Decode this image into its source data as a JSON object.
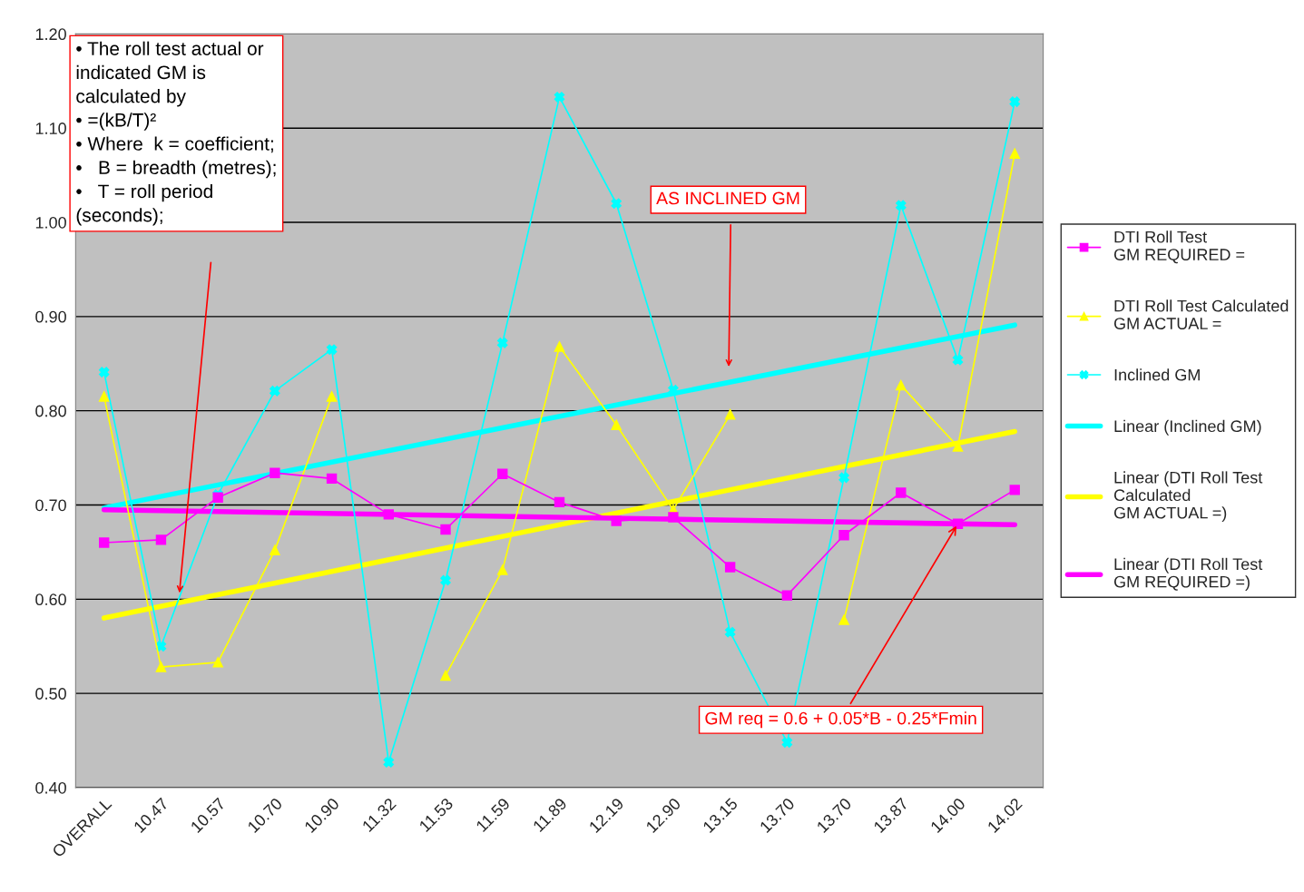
{
  "chart_data": {
    "type": "line",
    "categories": [
      "OVERALL",
      "10.47",
      "10.57",
      "10.70",
      "10.90",
      "11.32",
      "11.53",
      "11.59",
      "11.89",
      "12.19",
      "12.90",
      "13.15",
      "13.70",
      "13.70",
      "13.87",
      "14.00",
      "14.02"
    ],
    "series": [
      {
        "name": "DTI Roll Test\nGM REQUIRED =",
        "color": "#ff00ff",
        "marker": "square",
        "values": [
          0.66,
          0.663,
          0.708,
          0.734,
          0.728,
          0.69,
          0.674,
          0.733,
          0.703,
          0.683,
          0.687,
          0.634,
          0.604,
          0.668,
          0.713,
          0.68,
          0.716
        ]
      },
      {
        "name": "DTI Roll Test Calculated\nGM ACTUAL =",
        "color": "#ffff00",
        "marker": "triangle",
        "values": [
          0.815,
          0.528,
          0.533,
          0.652,
          0.815,
          null,
          0.519,
          0.631,
          0.868,
          0.785,
          0.695,
          0.796,
          null,
          0.578,
          0.827,
          0.762,
          1.073
        ]
      },
      {
        "name": "Inclined GM",
        "color": "#00ffff",
        "marker": "cross",
        "values": [
          0.841,
          0.55,
          0.711,
          0.821,
          0.865,
          0.427,
          0.62,
          0.872,
          1.133,
          1.02,
          0.822,
          0.565,
          0.448,
          0.729,
          1.018,
          0.854,
          1.128
        ]
      },
      {
        "name": "Linear (Inclined GM)",
        "color": "#00ffff",
        "marker": "none",
        "x": [
          "OVERALL",
          "14.02"
        ],
        "values": [
          0.697,
          0.891
        ]
      },
      {
        "name": "Linear (DTI Roll Test\nCalculated\nGM ACTUAL =)",
        "color": "#ffff00",
        "marker": "none",
        "x": [
          "OVERALL",
          "14.02"
        ],
        "values": [
          0.58,
          0.778
        ]
      },
      {
        "name": "Linear (DTI Roll Test\nGM REQUIRED =)",
        "color": "#ff00ff",
        "marker": "none",
        "x": [
          "OVERALL",
          "14.02"
        ],
        "values": [
          0.695,
          0.679
        ]
      }
    ],
    "ylim": [
      0.4,
      1.2
    ],
    "yticks": [
      {
        "value": 0.4,
        "label": "0.40"
      },
      {
        "value": 0.5,
        "label": "0.50"
      },
      {
        "value": 0.6,
        "label": "0.60"
      },
      {
        "value": 0.7,
        "label": "0.70"
      },
      {
        "value": 0.8,
        "label": "0.80"
      },
      {
        "value": 0.9,
        "label": "0.90"
      },
      {
        "value": 1.0,
        "label": "1.00"
      },
      {
        "value": 1.1,
        "label": "1.10"
      },
      {
        "value": 1.2,
        "label": "1.20"
      }
    ],
    "grid": "y",
    "legend": "right",
    "annotations": [
      "• The roll test actual or\nindicated GM is\ncalculated by\n• =(kB/T)²\n• Where  k = coefficient;\n•   B = breadth (metres);\n•   T = roll period\n(seconds);",
      "AS INCLINED GM",
      {
        "text": "GM req = 0.6 + 0.05*B - 0.25*Fmin",
        "x": "14.00",
        "y": 0.68
      }
    ]
  }
}
